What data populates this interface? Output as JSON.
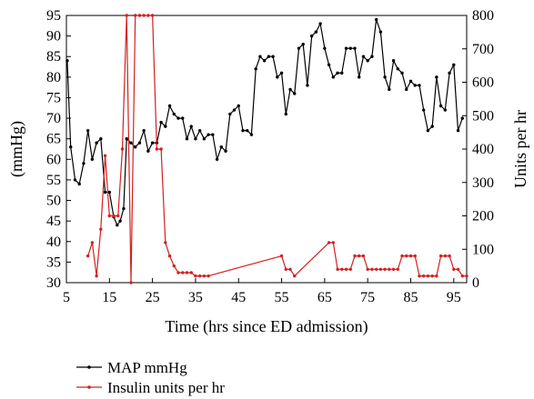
{
  "chart_data": {
    "type": "line",
    "title": "",
    "xlabel": "Time (hrs since ED admission)",
    "ylabel_left": "(mmHg)",
    "ylabel_right": "Units per hr",
    "xlim": [
      5,
      98
    ],
    "xticks": [
      5,
      15,
      25,
      35,
      45,
      55,
      65,
      75,
      85,
      95
    ],
    "ylim_left": [
      30,
      95
    ],
    "yticks_left": [
      30,
      35,
      40,
      45,
      50,
      55,
      60,
      65,
      70,
      75,
      80,
      85,
      90,
      95
    ],
    "ylim_right": [
      0,
      800
    ],
    "yticks_right": [
      0,
      100,
      200,
      300,
      400,
      500,
      600,
      700,
      800
    ],
    "legend_position": "bottom-left",
    "series": [
      {
        "name": "MAP mmHg",
        "axis": "left",
        "color": "#000000",
        "x": [
          5.2,
          6,
          7,
          8,
          9,
          10,
          11,
          12,
          13,
          14,
          15,
          16,
          16.8,
          17.5,
          18.3,
          19,
          20,
          21,
          22,
          23,
          24,
          25,
          26,
          27,
          28,
          29,
          30,
          31,
          32,
          33,
          34,
          35,
          36,
          37,
          38,
          39,
          40,
          41,
          42,
          43,
          44,
          45,
          46,
          47,
          48,
          49,
          50,
          51,
          52,
          53,
          54,
          55,
          56,
          57,
          58,
          59,
          60,
          61,
          62,
          63,
          64,
          65,
          66,
          67,
          68,
          69,
          70,
          71,
          72,
          73,
          74,
          75,
          76,
          77,
          78,
          79,
          80,
          81,
          82,
          83,
          84,
          85,
          86,
          87,
          88,
          89,
          90,
          91,
          92,
          93,
          94,
          95,
          96,
          97
        ],
        "values": [
          84,
          63,
          55,
          54,
          59,
          67,
          60,
          64,
          65,
          52,
          52,
          46,
          44,
          45,
          48,
          65,
          64,
          63,
          64,
          67,
          62,
          64,
          64,
          69,
          68,
          73,
          71,
          70,
          70,
          65,
          68,
          65,
          67,
          65,
          66,
          66,
          60,
          63,
          62,
          71,
          72,
          73,
          67,
          67,
          66,
          82,
          85,
          84,
          85,
          85,
          80,
          81,
          71,
          77,
          76,
          87,
          88,
          78,
          90,
          91,
          93,
          87,
          83,
          80,
          81,
          81,
          87,
          87,
          87,
          80,
          85,
          84,
          85,
          94,
          91,
          80,
          77,
          84,
          82,
          81,
          77,
          79,
          78,
          78,
          72,
          67,
          68,
          80,
          73,
          72,
          81,
          83,
          67,
          70
        ]
      },
      {
        "name": "Insulin units per hr",
        "axis": "right",
        "color": "#d42020",
        "x": [
          10,
          11,
          12,
          13,
          14,
          15,
          16,
          17,
          18,
          19,
          20,
          21,
          22,
          23,
          24,
          25,
          26,
          27,
          28,
          29,
          30,
          31,
          32,
          33,
          34,
          35,
          36,
          37,
          38,
          55,
          56,
          57,
          58,
          66,
          67,
          68,
          69,
          70,
          71,
          72,
          73,
          74,
          75,
          76,
          77,
          78,
          79,
          80,
          81,
          82,
          83,
          84,
          85,
          86,
          87,
          88,
          89,
          90,
          91,
          92,
          93,
          94,
          95,
          96,
          97,
          98
        ],
        "values": [
          80,
          120,
          20,
          160,
          380,
          200,
          200,
          200,
          400,
          800,
          0,
          800,
          800,
          800,
          800,
          800,
          400,
          400,
          120,
          80,
          50,
          30,
          30,
          30,
          30,
          20,
          20,
          20,
          20,
          80,
          40,
          40,
          20,
          120,
          120,
          40,
          40,
          40,
          40,
          80,
          80,
          80,
          40,
          40,
          40,
          40,
          40,
          40,
          40,
          40,
          80,
          80,
          80,
          80,
          20,
          20,
          20,
          20,
          20,
          80,
          80,
          80,
          40,
          40,
          20,
          20
        ]
      }
    ]
  }
}
